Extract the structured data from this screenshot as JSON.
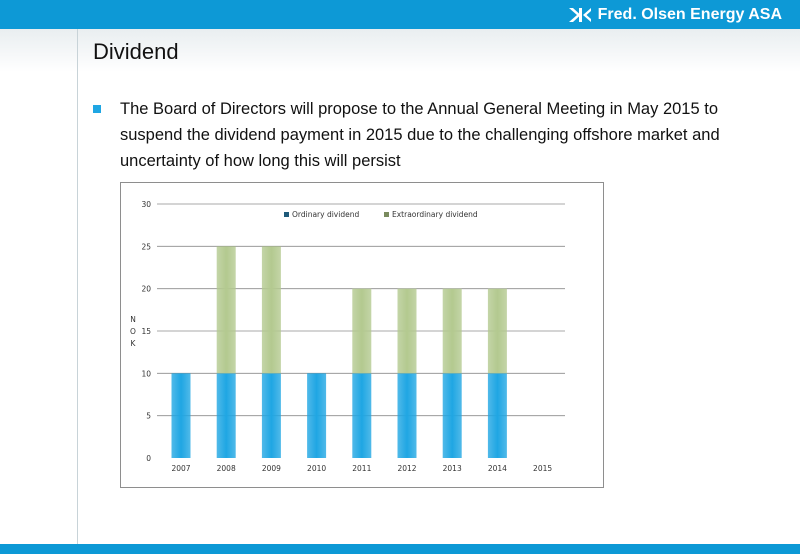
{
  "header": {
    "brand_name": "Fred. Olsen Energy ASA",
    "brand_icon": "fred-olsen-logo",
    "bar_color": "#0d99d6"
  },
  "slide": {
    "title": "Dividend",
    "bullet_text": "The Board of Directors will propose to the Annual General Meeting in May 2015 to suspend the dividend payment in 2015 due to the challenging offshore market and uncertainty of how long this will persist",
    "bullet_color": "#1fa6e3"
  },
  "chart_data": {
    "type": "bar",
    "stacked": true,
    "categories": [
      "2007",
      "2008",
      "2009",
      "2010",
      "2011",
      "2012",
      "2013",
      "2014",
      "2015"
    ],
    "series": [
      {
        "name": "Ordinary dividend",
        "values": [
          10,
          10,
          10,
          10,
          10,
          10,
          10,
          10,
          0
        ],
        "color": "#1fa6e3"
      },
      {
        "name": "Extraordinary dividend",
        "values": [
          0,
          15,
          15,
          0,
          10,
          10,
          10,
          10,
          0
        ],
        "color": "#b3c98f"
      }
    ],
    "ylabel": "NOK",
    "ylim": [
      0,
      30
    ],
    "yticks": [
      "0",
      "5",
      "10",
      "15",
      "20",
      "25",
      "30"
    ],
    "grid": true,
    "legend_position": "top"
  }
}
